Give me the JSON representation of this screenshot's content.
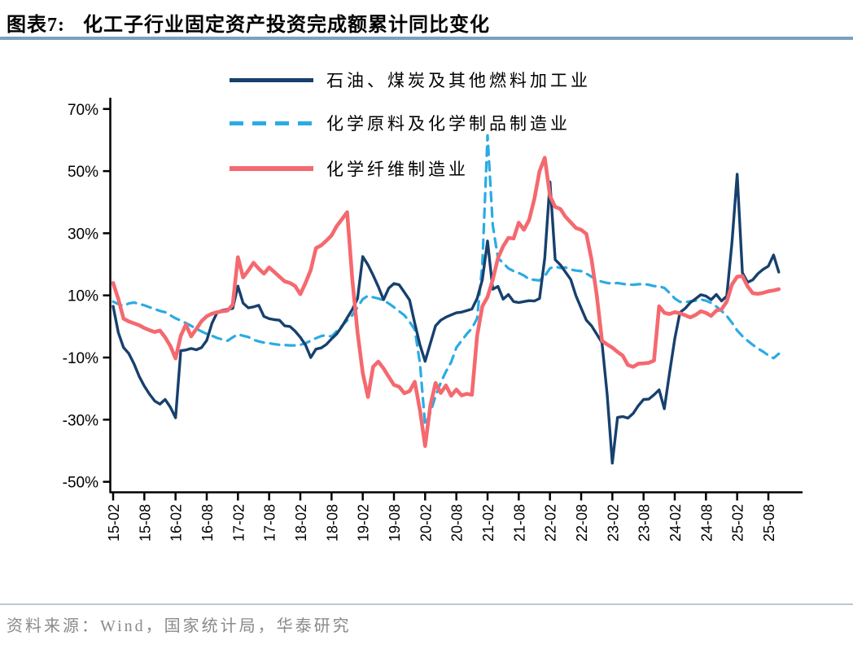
{
  "header": {
    "title_prefix": "图表7:",
    "title": "化工子行业固定资产投资完成额累计同比变化"
  },
  "source": {
    "text": "资料来源：Wind，国家统计局，华泰研究"
  },
  "style": {
    "title_rule_color": "#7ba1c0",
    "source_rule_color": "#b9c9d6",
    "source_text_color": "#8a8a8a",
    "axis_color": "#000000",
    "navy": "#17406d",
    "sky_blue": "#2aabe4",
    "coral": "#f4696f"
  },
  "chart_data": {
    "type": "line",
    "title": "化工子行业固定资产投资完成额累计同比变化",
    "xlabel": "",
    "ylabel": "",
    "grid": false,
    "legend_position": "top-center",
    "ylim": [
      -53,
      72
    ],
    "y_ticks": [
      "70%",
      "50%",
      "30%",
      "10%",
      "-10%",
      "-30%",
      "-50%"
    ],
    "x_tick_step": 6,
    "x_tick_labels": [
      "15-02",
      "15-08",
      "16-02",
      "16-08",
      "17-02",
      "17-08",
      "18-02",
      "18-08",
      "19-02",
      "19-08",
      "20-02",
      "20-08",
      "21-02",
      "21-08",
      "22-02",
      "22-08",
      "23-02",
      "23-08",
      "24-02",
      "24-08",
      "25-02",
      "25-08"
    ],
    "months": [
      "15-02",
      "15-03",
      "15-04",
      "15-05",
      "15-06",
      "15-07",
      "15-08",
      "15-09",
      "15-10",
      "15-11",
      "15-12",
      "16-01",
      "16-02",
      "16-03",
      "16-04",
      "16-05",
      "16-06",
      "16-07",
      "16-08",
      "16-09",
      "16-10",
      "16-11",
      "16-12",
      "17-01",
      "17-02",
      "17-03",
      "17-04",
      "17-05",
      "17-06",
      "17-07",
      "17-08",
      "17-09",
      "17-10",
      "17-11",
      "17-12",
      "18-01",
      "18-02",
      "18-03",
      "18-04",
      "18-05",
      "18-06",
      "18-07",
      "18-08",
      "18-09",
      "18-10",
      "18-11",
      "18-12",
      "19-01",
      "19-02",
      "19-03",
      "19-04",
      "19-05",
      "19-06",
      "19-07",
      "19-08",
      "19-09",
      "19-10",
      "19-11",
      "19-12",
      "20-01",
      "20-02",
      "20-03",
      "20-04",
      "20-05",
      "20-06",
      "20-07",
      "20-08",
      "20-09",
      "20-10",
      "20-11",
      "20-12",
      "21-01",
      "21-02",
      "21-03",
      "21-04",
      "21-05",
      "21-06",
      "21-07",
      "21-08",
      "21-09",
      "21-10",
      "21-11",
      "21-12",
      "22-01",
      "22-02",
      "22-03",
      "22-04",
      "22-05",
      "22-06",
      "22-07",
      "22-08",
      "22-09",
      "22-10",
      "22-11",
      "22-12",
      "23-01",
      "23-02",
      "23-03",
      "23-04",
      "23-05",
      "23-06",
      "23-07",
      "23-08",
      "23-09",
      "23-10",
      "23-11",
      "23-12",
      "24-01",
      "24-02",
      "24-03",
      "24-04",
      "24-05",
      "24-06",
      "24-07",
      "24-08",
      "24-09",
      "24-10",
      "24-11",
      "24-12",
      "25-01",
      "25-02",
      "25-03",
      "25-04",
      "25-05",
      "25-06",
      "25-07",
      "25-08",
      "25-09",
      "25-10"
    ],
    "series": [
      {
        "name": "化学原料及化学制品制造业",
        "color": "#2aabe4",
        "style": "dashed",
        "width": 3.2,
        "values": [
          8,
          7.2,
          6.6,
          7.4,
          7.7,
          7.3,
          6.8,
          6.2,
          5.6,
          5,
          4.6,
          3.6,
          2.6,
          1.9,
          1.1,
          0.2,
          -0.7,
          -1.6,
          -2.4,
          -3,
          -3.7,
          -4.2,
          -4.6,
          -3.5,
          -2.5,
          -3,
          -3.4,
          -4.3,
          -4.8,
          -5.2,
          -5.4,
          -5.7,
          -5.9,
          -6,
          -6.1,
          -6.1,
          -5.9,
          -5.4,
          -4.6,
          -3.8,
          -3.1,
          -2.8,
          -3.3,
          -1.5,
          0.2,
          1.9,
          3.6,
          6.2,
          8.8,
          9.9,
          9.4,
          9,
          8.4,
          7.4,
          6.2,
          4.9,
          3.6,
          1.5,
          -1,
          -12,
          -31.7,
          -27.8,
          -22.4,
          -18.1,
          -14.5,
          -11.5,
          -6.8,
          -4.6,
          -2.4,
          -0.6,
          2.6,
          20,
          61.5,
          32.6,
          22,
          20.4,
          18.7,
          17.8,
          17.2,
          16.4,
          15.2,
          15,
          14.8,
          16.2,
          18.7,
          19.3,
          18.8,
          19,
          18.3,
          18,
          17.8,
          17,
          16,
          14.9,
          14.4,
          14,
          13.8,
          14,
          13.7,
          13.5,
          13.4,
          13.6,
          13.7,
          13.4,
          13,
          12.9,
          12.4,
          10.8,
          9,
          7.9,
          7.8,
          8.1,
          8.3,
          8.7,
          8.3,
          7.6,
          6.4,
          5,
          3.4,
          1.2,
          -1.3,
          -3.1,
          -4.6,
          -5.9,
          -7.1,
          -8.1,
          -9.3,
          -10.2,
          -8.8
        ]
      },
      {
        "name": "石油、煤炭及其他燃料加工业",
        "color": "#17406d",
        "style": "solid",
        "width": 3.4,
        "values": [
          6.5,
          -2,
          -6.8,
          -8.7,
          -12,
          -16,
          -19.2,
          -21.8,
          -24,
          -25,
          -23.5,
          -26,
          -29.4,
          -7.8,
          -7.6,
          -7.1,
          -7.5,
          -6.8,
          -4.5,
          1,
          4.5,
          5.2,
          5.5,
          5.8,
          13,
          7.5,
          6,
          6.3,
          6.8,
          3.2,
          2.5,
          2.2,
          2,
          0.2,
          0,
          -1.5,
          -3.5,
          -6,
          -10,
          -7.3,
          -6.9,
          -5.8,
          -4,
          -2.4,
          0,
          2.8,
          5.5,
          9,
          22.5,
          19.8,
          16.5,
          12.8,
          8.6,
          12.3,
          13.8,
          13.4,
          11,
          8.5,
          1,
          -6,
          -11.2,
          -5.5,
          0.2,
          2,
          3,
          3.7,
          4.4,
          4.6,
          5.1,
          5.6,
          9,
          15,
          27.5,
          12,
          12.9,
          8.8,
          10.3,
          8,
          7.7,
          8,
          8.3,
          8.2,
          9,
          22,
          46.5,
          21.5,
          19.8,
          17.5,
          15.1,
          9.9,
          5.9,
          2,
          0.2,
          -2.5,
          -5.2,
          -22,
          -44,
          -29.3,
          -29,
          -29.5,
          -28,
          -25.5,
          -23.5,
          -23.4,
          -22,
          -20.4,
          -26.5,
          -15,
          -4,
          4.5,
          5.8,
          7.7,
          8.9,
          10.2,
          9.8,
          8.6,
          10.3,
          8.2,
          9.8,
          27,
          49,
          17.3,
          14.2,
          15,
          17,
          18.4,
          19.4,
          23,
          17.5
        ]
      },
      {
        "name": "化学纤维制造业",
        "color": "#f4696f",
        "style": "solid",
        "width": 4.6,
        "values": [
          14,
          8.8,
          2.5,
          1.6,
          1,
          0.4,
          -0.5,
          -1.2,
          -1.8,
          -1.3,
          -3.5,
          -6.3,
          -10.3,
          -3,
          0.6,
          -3.2,
          -0.8,
          1.7,
          3.3,
          4.1,
          4.6,
          4.9,
          5.1,
          7,
          22.3,
          15.8,
          18,
          20.5,
          18.6,
          17,
          19,
          17.5,
          16,
          14.5,
          14,
          13,
          10.4,
          14,
          18.2,
          25.2,
          26.1,
          27.6,
          29.3,
          32.3,
          34.5,
          36.8,
          15,
          -2,
          -15,
          -22.7,
          -13,
          -11.3,
          -13.5,
          -16.2,
          -18.8,
          -19.4,
          -21.5,
          -20.8,
          -17.8,
          -27,
          -38.5,
          -25.5,
          -18.2,
          -21.4,
          -19,
          -22.3,
          -20.3,
          -22.2,
          -21.7,
          -22,
          -3,
          6.5,
          9.5,
          15,
          22,
          25.8,
          28.5,
          28.3,
          33.4,
          31.1,
          34.3,
          41,
          50,
          54.3,
          42,
          38.5,
          37.8,
          35.3,
          33.5,
          31.7,
          31.1,
          29.8,
          21.5,
          10,
          -4.6,
          -5.8,
          -6.8,
          -8.2,
          -9.4,
          -12.4,
          -13,
          -12,
          -11.9,
          -11.7,
          -11,
          6.5,
          4.4,
          4,
          4.6,
          4.2,
          3.6,
          2.9,
          3.7,
          4.9,
          4.4,
          3.4,
          5.1,
          5.5,
          8,
          13.5,
          16,
          16.2,
          12.9,
          10.7,
          10.5,
          10.8,
          11.3,
          11.6,
          12
        ]
      }
    ],
    "legend_order_note": "legend shows navy solid, blue dashed, coral solid (top to bottom)"
  }
}
